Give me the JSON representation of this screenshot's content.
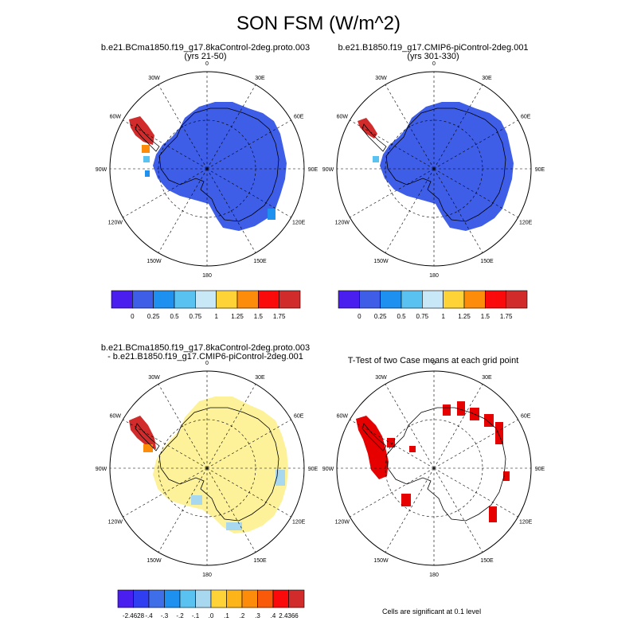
{
  "title": "SON FSM (W/m^2)",
  "panels": [
    {
      "title_line1": "b.e21.BCma1850.f19_g17.8kaControl-2deg.proto.003",
      "title_line2": "(yrs 21-50)"
    },
    {
      "title_line1": "b.e21.B1850.f19_g17.CMIP6-piControl-2deg.001",
      "title_line2": "(yrs 301-330)"
    },
    {
      "title_line1": "b.e21.BCma1850.f19_g17.8kaControl-2deg.proto.003",
      "title_line2": "- b.e21.B1850.f19_g17.CMIP6-piControl-2deg.001"
    },
    {
      "title_line1": "T-Test of two Case means at each grid point",
      "title_line2": ""
    }
  ],
  "lon_labels": [
    "0",
    "30E",
    "60E",
    "90E",
    "120E",
    "150E",
    "180",
    "150W",
    "120W",
    "90W",
    "60W",
    "30W"
  ],
  "colorbar_abs": {
    "colors": [
      "#4b1ef0",
      "#3e5ee8",
      "#1e90f0",
      "#5ac2f0",
      "#c8e8f8",
      "#fdd338",
      "#fd8c0a",
      "#fa0a0a",
      "#d22b2b"
    ],
    "labels": [
      "0",
      "0.25",
      "0.5",
      "0.75",
      "1",
      "1.25",
      "1.5",
      "1.75"
    ]
  },
  "colorbar_diff": {
    "colors": [
      "#4b1ef0",
      "#2e3ef0",
      "#3e6ee8",
      "#1e90f0",
      "#5ac2f0",
      "#a8d8f0",
      "#fdd338",
      "#fdb418",
      "#fd8c0a",
      "#f85a0a",
      "#fa0a0a",
      "#d22b2b"
    ],
    "labels": [
      "-2.4628",
      "-.4",
      "-.3",
      "-.2",
      "-.1",
      ".0",
      ".1",
      ".2",
      ".3",
      ".4",
      "2.4366"
    ]
  },
  "sig_note": "Cells are significant at 0.1 level",
  "colors": {
    "ice_high": "#3e5ee8",
    "diff_fill": "#fdf29a",
    "sig_fill": "#e60000",
    "red_peninsula": "#d22b2b"
  }
}
